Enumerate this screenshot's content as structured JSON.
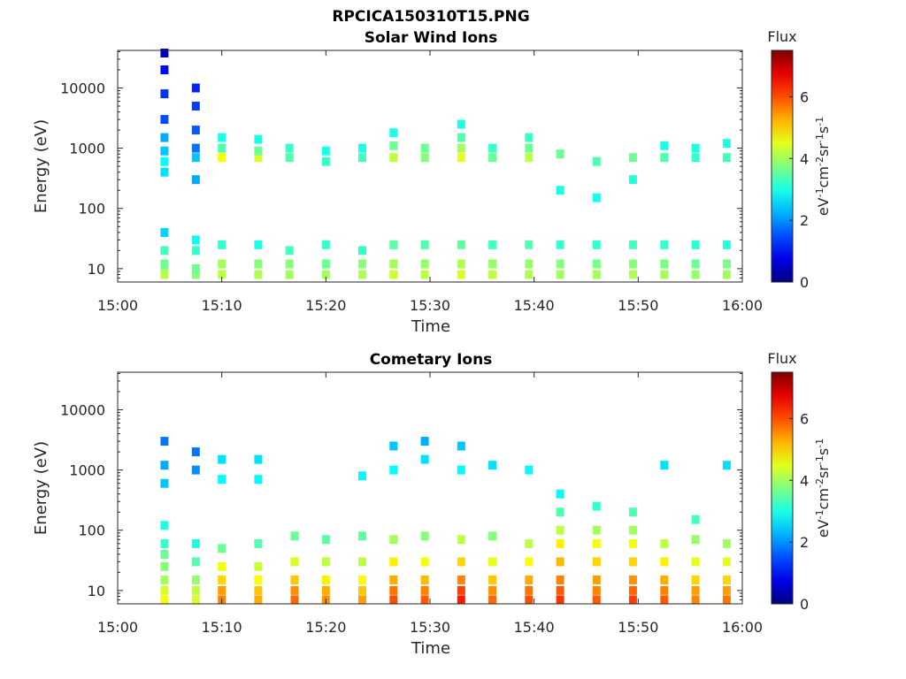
{
  "figure_title": "RPCICA150310T15.PNG",
  "chart_data": [
    {
      "type": "heatmap",
      "title": "Solar Wind Ions",
      "xlabel": "Time",
      "ylabel": "Energy (eV)",
      "x_range": [
        "15:00",
        "16:00"
      ],
      "y_range": [
        6,
        42000
      ],
      "y_scale": "log",
      "x_ticks": [
        "15:00",
        "15:10",
        "15:20",
        "15:30",
        "15:40",
        "15:50",
        "16:00"
      ],
      "y_ticks": [
        {
          "value": 10,
          "label": "10"
        },
        {
          "value": 100,
          "label": "100"
        },
        {
          "value": 1000,
          "label": "1000"
        },
        {
          "value": 10000,
          "label": "10000"
        }
      ],
      "colorbar": {
        "title": "Flux",
        "label": "eV-1cm-2sr-1s-1",
        "range": [
          0,
          7.5
        ],
        "ticks": [
          "0",
          "2",
          "4",
          "6"
        ],
        "colormap": "jet"
      },
      "cells": [
        {
          "t": 4.5,
          "e": [
            [
              8,
              4.2
            ],
            [
              10,
              4.0
            ],
            [
              12,
              3.6
            ],
            [
              20,
              3.3
            ],
            [
              40,
              2.5
            ],
            [
              400,
              2.6
            ],
            [
              600,
              2.8
            ],
            [
              900,
              2.4
            ],
            [
              1500,
              2.2
            ],
            [
              3000,
              1.5
            ],
            [
              8000,
              1.3
            ],
            [
              20000,
              1.0
            ],
            [
              38000,
              0.5
            ]
          ]
        },
        {
          "t": 7.5,
          "e": [
            [
              8,
              3.8
            ],
            [
              10,
              3.6
            ],
            [
              20,
              3.2
            ],
            [
              30,
              2.9
            ],
            [
              300,
              2.2
            ],
            [
              700,
              2.4
            ],
            [
              1000,
              1.8
            ],
            [
              2000,
              1.6
            ],
            [
              5000,
              1.4
            ],
            [
              10000,
              1.2
            ]
          ]
        },
        {
          "t": 10,
          "e": [
            [
              8,
              4.2
            ],
            [
              12,
              4.0
            ],
            [
              25,
              3.2
            ],
            [
              700,
              4.6
            ],
            [
              1000,
              3.4
            ],
            [
              1500,
              3.0
            ]
          ]
        },
        {
          "t": 13.5,
          "e": [
            [
              8,
              4.1
            ],
            [
              12,
              3.8
            ],
            [
              25,
              3.0
            ],
            [
              700,
              4.4
            ],
            [
              900,
              3.6
            ],
            [
              1400,
              3.0
            ]
          ]
        },
        {
          "t": 16.5,
          "e": [
            [
              8,
              4.0
            ],
            [
              12,
              3.8
            ],
            [
              20,
              3.3
            ],
            [
              700,
              3.4
            ],
            [
              1000,
              3.2
            ]
          ]
        },
        {
          "t": 20,
          "e": [
            [
              8,
              4.0
            ],
            [
              12,
              3.6
            ],
            [
              25,
              3.2
            ],
            [
              600,
              3.2
            ],
            [
              900,
              3.0
            ]
          ]
        },
        {
          "t": 23.5,
          "e": [
            [
              8,
              4.1
            ],
            [
              12,
              3.8
            ],
            [
              20,
              3.2
            ],
            [
              700,
              3.3
            ],
            [
              1000,
              3.0
            ]
          ]
        },
        {
          "t": 26.5,
          "e": [
            [
              8,
              4.3
            ],
            [
              12,
              4.0
            ],
            [
              25,
              3.5
            ],
            [
              700,
              4.2
            ],
            [
              1100,
              3.6
            ],
            [
              1800,
              3.0
            ]
          ]
        },
        {
          "t": 29.5,
          "e": [
            [
              8,
              4.2
            ],
            [
              12,
              3.9
            ],
            [
              25,
              3.4
            ],
            [
              700,
              3.8
            ],
            [
              1000,
              3.6
            ]
          ]
        },
        {
          "t": 33,
          "e": [
            [
              8,
              4.4
            ],
            [
              12,
              4.1
            ],
            [
              25,
              3.5
            ],
            [
              700,
              4.5
            ],
            [
              1000,
              4.0
            ],
            [
              1500,
              3.4
            ],
            [
              2500,
              3.0
            ]
          ]
        },
        {
          "t": 36,
          "e": [
            [
              8,
              4.2
            ],
            [
              12,
              3.9
            ],
            [
              25,
              3.3
            ],
            [
              700,
              3.6
            ],
            [
              1000,
              3.2
            ]
          ]
        },
        {
          "t": 39.5,
          "e": [
            [
              8,
              4.1
            ],
            [
              12,
              3.9
            ],
            [
              25,
              3.4
            ],
            [
              700,
              4.2
            ],
            [
              1000,
              3.6
            ],
            [
              1500,
              3.2
            ]
          ]
        },
        {
          "t": 42.5,
          "e": [
            [
              8,
              4.0
            ],
            [
              12,
              3.8
            ],
            [
              25,
              3.2
            ],
            [
              800,
              3.6
            ],
            [
              200,
              3.0
            ]
          ]
        },
        {
          "t": 46,
          "e": [
            [
              8,
              4.0
            ],
            [
              12,
              3.7
            ],
            [
              25,
              3.2
            ],
            [
              600,
              3.4
            ],
            [
              150,
              3.0
            ]
          ]
        },
        {
          "t": 49.5,
          "e": [
            [
              8,
              4.1
            ],
            [
              12,
              3.8
            ],
            [
              25,
              3.3
            ],
            [
              700,
              3.6
            ],
            [
              300,
              3.1
            ]
          ]
        },
        {
          "t": 52.5,
          "e": [
            [
              8,
              4.0
            ],
            [
              12,
              3.7
            ],
            [
              25,
              3.2
            ],
            [
              700,
              3.4
            ],
            [
              1100,
              3.0
            ]
          ]
        },
        {
          "t": 55.5,
          "e": [
            [
              8,
              3.9
            ],
            [
              12,
              3.6
            ],
            [
              25,
              3.1
            ],
            [
              700,
              3.2
            ],
            [
              1000,
              3.0
            ]
          ]
        },
        {
          "t": 58.5,
          "e": [
            [
              8,
              4.0
            ],
            [
              12,
              3.7
            ],
            [
              25,
              3.1
            ],
            [
              700,
              3.3
            ],
            [
              1200,
              3.0
            ]
          ]
        }
      ]
    },
    {
      "type": "heatmap",
      "title": "Cometary Ions",
      "xlabel": "Time",
      "ylabel": "Energy (eV)",
      "x_range": [
        "15:00",
        "16:00"
      ],
      "y_range": [
        6,
        42000
      ],
      "y_scale": "log",
      "x_ticks": [
        "15:00",
        "15:10",
        "15:20",
        "15:30",
        "15:40",
        "15:50",
        "16:00"
      ],
      "y_ticks": [
        {
          "value": 10,
          "label": "10"
        },
        {
          "value": 100,
          "label": "100"
        },
        {
          "value": 1000,
          "label": "1000"
        },
        {
          "value": 10000,
          "label": "10000"
        }
      ],
      "colorbar": {
        "title": "Flux",
        "label": "eV-1cm-2sr-1s-1",
        "range": [
          0,
          7.5
        ],
        "ticks": [
          "0",
          "2",
          "4",
          "6"
        ],
        "colormap": "jet"
      },
      "cells": [
        {
          "t": 4.5,
          "e": [
            [
              7,
              4.6
            ],
            [
              10,
              4.4
            ],
            [
              15,
              4.0
            ],
            [
              25,
              3.8
            ],
            [
              40,
              3.6
            ],
            [
              60,
              3.2
            ],
            [
              120,
              3.0
            ],
            [
              600,
              2.4
            ],
            [
              1200,
              2.2
            ],
            [
              3000,
              1.8
            ]
          ]
        },
        {
          "t": 7.5,
          "e": [
            [
              7,
              4.4
            ],
            [
              10,
              4.2
            ],
            [
              15,
              3.9
            ],
            [
              30,
              3.4
            ],
            [
              60,
              3.0
            ],
            [
              1000,
              2.0
            ],
            [
              2000,
              1.8
            ]
          ]
        },
        {
          "t": 10,
          "e": [
            [
              7,
              5.6
            ],
            [
              10,
              5.4
            ],
            [
              15,
              5.0
            ],
            [
              25,
              4.6
            ],
            [
              50,
              3.6
            ],
            [
              700,
              2.8
            ],
            [
              1500,
              2.6
            ]
          ]
        },
        {
          "t": 13.5,
          "e": [
            [
              7,
              5.3
            ],
            [
              10,
              5.1
            ],
            [
              15,
              4.7
            ],
            [
              25,
              4.3
            ],
            [
              60,
              3.4
            ],
            [
              700,
              2.8
            ],
            [
              1500,
              2.6
            ]
          ]
        },
        {
          "t": 17,
          "e": [
            [
              7,
              5.8
            ],
            [
              10,
              5.5
            ],
            [
              15,
              5.1
            ],
            [
              30,
              4.4
            ],
            [
              80,
              3.6
            ]
          ]
        },
        {
          "t": 20,
          "e": [
            [
              7,
              5.5
            ],
            [
              10,
              5.3
            ],
            [
              15,
              4.8
            ],
            [
              30,
              4.2
            ],
            [
              70,
              3.5
            ]
          ]
        },
        {
          "t": 23.5,
          "e": [
            [
              7,
              5.4
            ],
            [
              10,
              5.1
            ],
            [
              15,
              4.7
            ],
            [
              30,
              4.2
            ],
            [
              80,
              3.5
            ],
            [
              800,
              2.8
            ]
          ]
        },
        {
          "t": 26.5,
          "e": [
            [
              7,
              6.0
            ],
            [
              10,
              5.7
            ],
            [
              15,
              5.3
            ],
            [
              30,
              4.8
            ],
            [
              70,
              4.0
            ],
            [
              1000,
              2.8
            ],
            [
              2500,
              2.4
            ]
          ]
        },
        {
          "t": 29.5,
          "e": [
            [
              7,
              5.9
            ],
            [
              10,
              5.6
            ],
            [
              15,
              5.2
            ],
            [
              30,
              4.6
            ],
            [
              80,
              3.8
            ],
            [
              1500,
              2.6
            ],
            [
              3000,
              2.2
            ]
          ]
        },
        {
          "t": 33,
          "e": [
            [
              7,
              6.4
            ],
            [
              10,
              6.1
            ],
            [
              15,
              5.6
            ],
            [
              30,
              5.0
            ],
            [
              70,
              4.2
            ],
            [
              1000,
              2.8
            ],
            [
              2500,
              2.4
            ]
          ]
        },
        {
          "t": 36,
          "e": [
            [
              7,
              5.8
            ],
            [
              10,
              5.5
            ],
            [
              15,
              5.1
            ],
            [
              30,
              4.5
            ],
            [
              80,
              3.8
            ],
            [
              1200,
              2.6
            ]
          ]
        },
        {
          "t": 39.5,
          "e": [
            [
              7,
              6.0
            ],
            [
              10,
              5.7
            ],
            [
              15,
              5.3
            ],
            [
              30,
              4.7
            ],
            [
              60,
              4.2
            ],
            [
              1000,
              2.8
            ]
          ]
        },
        {
          "t": 42.5,
          "e": [
            [
              7,
              6.2
            ],
            [
              10,
              5.9
            ],
            [
              15,
              5.6
            ],
            [
              30,
              5.2
            ],
            [
              60,
              4.8
            ],
            [
              100,
              4.2
            ],
            [
              200,
              3.4
            ],
            [
              400,
              2.8
            ]
          ]
        },
        {
          "t": 46,
          "e": [
            [
              7,
              5.9
            ],
            [
              10,
              5.6
            ],
            [
              15,
              5.4
            ],
            [
              30,
              5.0
            ],
            [
              60,
              4.6
            ],
            [
              100,
              4.0
            ],
            [
              250,
              3.2
            ]
          ]
        },
        {
          "t": 49.5,
          "e": [
            [
              7,
              6.1
            ],
            [
              10,
              5.8
            ],
            [
              15,
              5.5
            ],
            [
              30,
              5.0
            ],
            [
              60,
              4.6
            ],
            [
              100,
              4.0
            ],
            [
              200,
              3.4
            ]
          ]
        },
        {
          "t": 52.5,
          "e": [
            [
              7,
              5.9
            ],
            [
              10,
              5.6
            ],
            [
              15,
              5.3
            ],
            [
              30,
              4.8
            ],
            [
              60,
              4.2
            ],
            [
              1200,
              2.6
            ]
          ]
        },
        {
          "t": 55.5,
          "e": [
            [
              7,
              5.6
            ],
            [
              10,
              5.4
            ],
            [
              15,
              5.0
            ],
            [
              30,
              4.5
            ],
            [
              70,
              3.9
            ],
            [
              150,
              3.3
            ]
          ]
        },
        {
          "t": 58.5,
          "e": [
            [
              7,
              5.7
            ],
            [
              10,
              5.4
            ],
            [
              15,
              5.0
            ],
            [
              30,
              4.5
            ],
            [
              60,
              4.0
            ],
            [
              1200,
              2.6
            ]
          ]
        }
      ]
    }
  ]
}
